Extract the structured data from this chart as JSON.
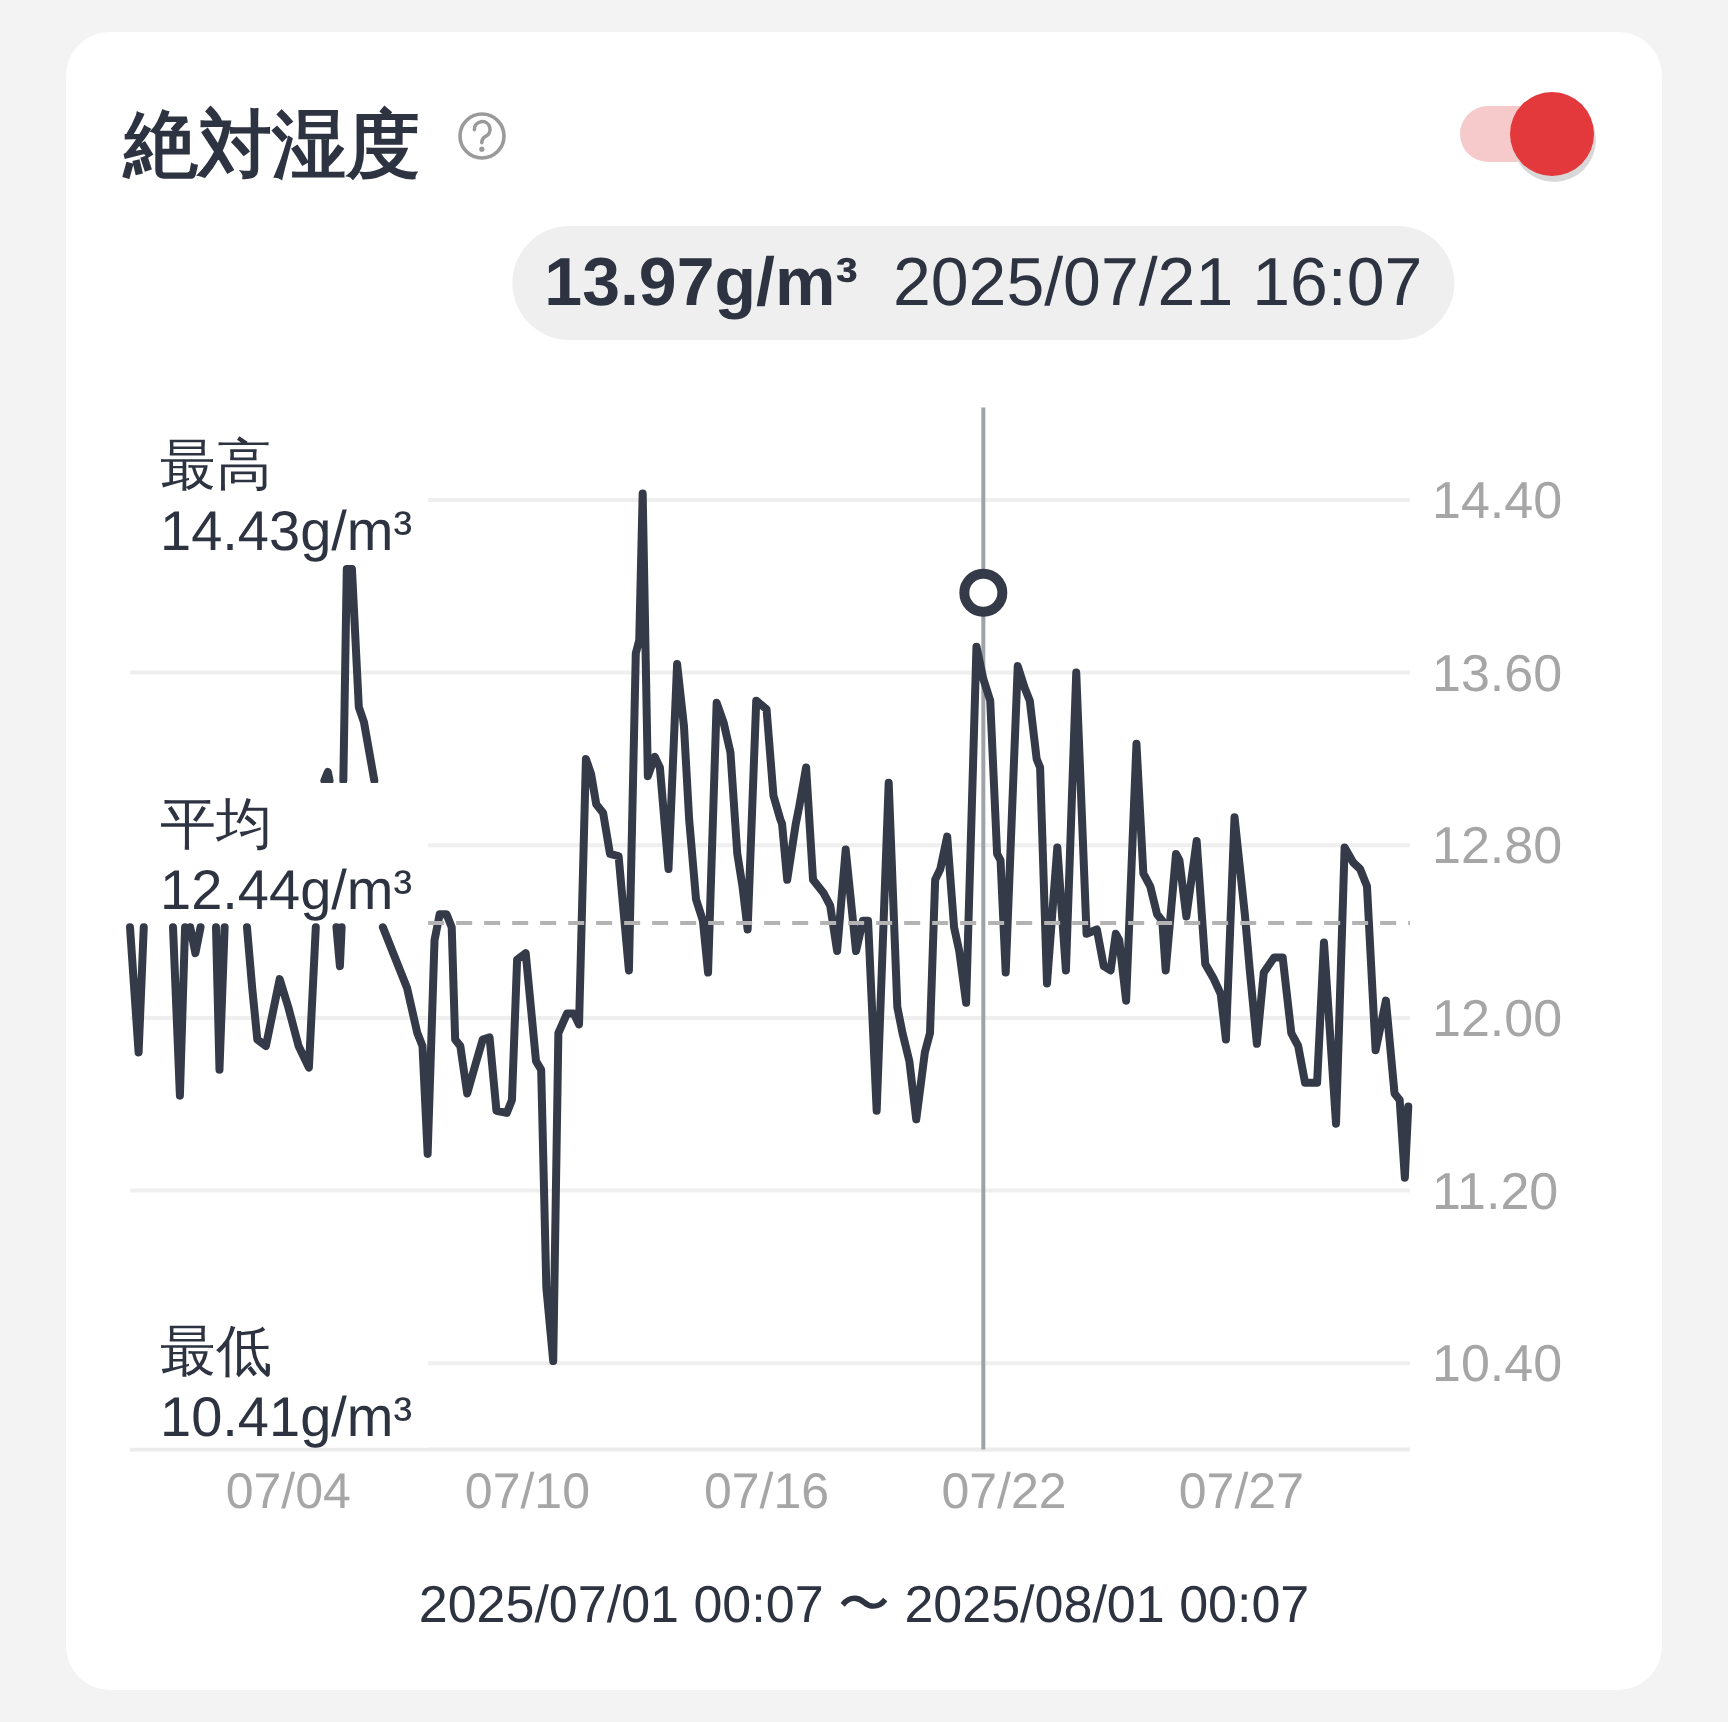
{
  "chart_data": {
    "type": "line",
    "title": "絶対湿度",
    "xlabel": "2025/07/01 00:07 〜 2025/08/01 00:07",
    "xlim": [
      "2025-07-01T00:07",
      "2025-08-01T00:07"
    ],
    "xticks": [
      {
        "value": "2025-07-04T20:07",
        "label": "07/04"
      },
      {
        "value": "2025-07-10T15:07",
        "label": "07/10"
      },
      {
        "value": "2025-07-16T10:07",
        "label": "07/16"
      },
      {
        "value": "2025-07-22T04:07",
        "label": "07/22"
      },
      {
        "value": "2025-07-27T22:07",
        "label": "07/27"
      }
    ],
    "ylim": [
      10.0,
      14.8
    ],
    "yticks": [
      {
        "value": 10.4,
        "label": "10.40"
      },
      {
        "value": 11.2,
        "label": "11.20"
      },
      {
        "value": 12.0,
        "label": "12.00"
      },
      {
        "value": 12.8,
        "label": "12.80"
      },
      {
        "value": 13.6,
        "label": "13.60"
      },
      {
        "value": 14.4,
        "label": "14.40"
      }
    ],
    "grid": "y",
    "series": [
      {
        "color": "#343a48",
        "x": [
          "2025-07-01T00:07",
          "2025-07-01T05:07",
          "2025-07-01T08:07",
          null,
          "2025-07-02T01:07",
          "2025-07-02T05:07",
          "2025-07-02T08:07",
          null,
          "2025-07-02T11:07",
          "2025-07-02T14:07",
          "2025-07-02T17:07",
          null,
          "2025-07-03T02:07",
          "2025-07-03T04:07",
          "2025-07-03T07:07",
          null,
          "2025-07-03T20:07",
          "2025-07-03T23:07",
          "2025-07-04T02:07",
          "2025-07-04T07:07",
          "2025-07-04T15:07",
          "2025-07-04T20:07",
          "2025-07-05T02:07",
          "2025-07-05T08:07",
          "2025-07-05T12:07",
          null,
          "2025-07-05T17:07",
          "2025-07-05T19:07",
          "2025-07-05T20:07",
          null,
          "2025-07-06T00:07",
          "2025-07-06T02:07",
          "2025-07-06T03:07",
          null,
          "2025-07-06T04:07",
          "2025-07-06T06:07",
          "2025-07-06T09:07",
          "2025-07-06T13:07",
          "2025-07-06T16:07",
          "2025-07-06T22:07",
          null,
          "2025-07-07T03:07",
          "2025-07-07T09:07",
          "2025-07-07T17:07",
          "2025-07-07T23:07",
          "2025-07-08T02:07",
          "2025-07-08T05:07",
          "2025-07-08T09:07",
          "2025-07-08T12:07",
          "2025-07-08T16:07",
          "2025-07-08T19:07",
          "2025-07-08T21:07",
          "2025-07-09T00:07",
          "2025-07-09T04:07",
          "2025-07-09T09:07",
          "2025-07-09T13:07",
          "2025-07-09T17:07",
          "2025-07-09T21:07",
          "2025-07-10T03:07",
          "2025-07-10T06:07",
          "2025-07-10T09:07",
          "2025-07-10T14:07",
          "2025-07-10T20:07",
          "2025-07-10T23:07",
          "2025-07-11T02:07",
          "2025-07-11T06:07",
          "2025-07-11T09:07",
          "2025-07-11T14:07",
          "2025-07-11T18:07",
          "2025-07-11T21:07",
          "2025-07-12T01:07",
          "2025-07-12T04:07",
          "2025-07-12T07:07",
          "2025-07-12T11:07",
          "2025-07-12T15:07",
          "2025-07-12T20:07",
          "2025-07-13T02:07",
          "2025-07-13T06:07",
          "2025-07-13T08:07",
          "2025-07-13T10:07",
          "2025-07-13T13:07",
          "2025-07-13T17:07",
          "2025-07-13T20:07",
          "2025-07-14T01:07",
          "2025-07-14T06:07",
          "2025-07-14T10:07",
          "2025-07-14T13:07",
          "2025-07-14T17:07",
          "2025-07-14T21:07",
          "2025-07-15T00:07",
          "2025-07-15T05:07",
          "2025-07-15T09:07",
          "2025-07-15T13:07",
          "2025-07-15T17:07",
          "2025-07-15T20:07",
          "2025-07-15T23:07",
          "2025-07-16T04:07",
          "2025-07-16T10:07",
          "2025-07-16T14:07",
          "2025-07-16T18:07",
          "2025-07-16T19:07",
          "2025-07-16T22:07",
          "2025-07-17T03:07",
          "2025-07-17T05:07",
          "2025-07-17T09:07",
          "2025-07-17T13:07",
          "2025-07-17T19:07",
          "2025-07-17T23:07",
          "2025-07-18T03:07",
          "2025-07-18T08:07",
          "2025-07-18T14:07",
          "2025-07-18T18:07",
          "2025-07-18T21:07",
          "2025-07-19T02:07",
          "2025-07-19T09:07",
          "2025-07-19T14:07",
          "2025-07-19T17:07",
          "2025-07-19T21:07",
          "2025-07-20T01:07",
          "2025-07-20T06:07",
          "2025-07-20T09:07",
          "2025-07-20T12:07",
          "2025-07-20T15:07",
          "2025-07-20T19:07",
          "2025-07-20T23:07",
          "2025-07-21T02:07",
          "2025-07-21T06:07",
          "2025-07-21T12:07",
          "2025-07-21T16:07",
          "2025-07-21T20:07",
          "2025-07-22T00:07",
          "2025-07-22T02:07",
          "2025-07-22T05:07",
          "2025-07-22T12:07",
          "2025-07-22T16:07",
          "2025-07-22T19:07",
          "2025-07-22T23:07",
          "2025-07-23T01:07",
          "2025-07-23T05:07",
          "2025-07-23T11:07",
          "2025-07-23T16:07",
          "2025-07-23T22:07",
          "2025-07-24T04:07",
          "2025-07-24T10:07",
          "2025-07-24T14:07",
          "2025-07-24T18:07",
          "2025-07-24T21:07",
          "2025-07-24T23:07",
          "2025-07-25T03:07",
          "2025-07-25T09:07",
          "2025-07-25T13:07",
          "2025-07-25T17:07",
          "2025-07-25T21:07",
          "2025-07-26T00:07",
          "2025-07-26T02:07",
          "2025-07-26T08:07",
          "2025-07-26T10:07",
          "2025-07-26T14:07",
          "2025-07-26T20:07",
          "2025-07-27T01:07",
          "2025-07-27T06:07",
          "2025-07-27T10:07",
          "2025-07-27T13:07",
          "2025-07-27T18:07",
          "2025-07-28T00:07",
          "2025-07-28T03:07",
          "2025-07-28T07:07",
          "2025-07-28T11:07",
          "2025-07-28T17:07",
          "2025-07-28T22:07",
          "2025-07-29T03:07",
          "2025-07-29T07:07",
          "2025-07-29T11:07",
          "2025-07-29T18:07",
          "2025-07-29T22:07",
          "2025-07-30T05:07",
          "2025-07-30T10:07",
          "2025-07-30T15:07",
          "2025-07-30T19:07",
          "2025-07-30T23:07",
          "2025-07-31T04:07",
          "2025-07-31T10:07",
          "2025-07-31T15:07",
          "2025-07-31T18:07",
          "2025-07-31T21:07",
          "2025-07-31T23:07"
        ],
        "values": [
          12.42,
          11.84,
          12.42,
          null,
          12.42,
          11.64,
          12.42,
          null,
          12.42,
          12.3,
          12.42,
          null,
          12.42,
          11.76,
          12.42,
          null,
          12.42,
          12.14,
          11.9,
          11.87,
          12.18,
          12.05,
          11.87,
          11.77,
          12.42,
          null,
          13.1,
          13.14,
          13.1,
          null,
          12.42,
          12.24,
          12.42,
          null,
          13.1,
          14.08,
          14.08,
          13.44,
          13.37,
          13.1,
          null,
          12.42,
          12.3,
          12.14,
          11.93,
          11.87,
          11.37,
          12.36,
          12.48,
          12.48,
          12.42,
          11.9,
          11.87,
          11.65,
          11.79,
          11.9,
          11.91,
          11.57,
          11.56,
          11.62,
          12.27,
          12.3,
          11.8,
          11.76,
          10.75,
          10.41,
          11.93,
          12.02,
          12.02,
          11.97,
          13.2,
          13.13,
          12.99,
          12.95,
          12.76,
          12.75,
          12.22,
          13.69,
          13.75,
          14.43,
          13.12,
          13.21,
          13.16,
          12.69,
          13.64,
          13.35,
          12.92,
          12.55,
          12.45,
          12.21,
          13.46,
          13.37,
          13.23,
          12.76,
          12.61,
          12.41,
          13.47,
          13.43,
          13.03,
          12.92,
          12.9,
          12.64,
          12.9,
          12.98,
          13.16,
          12.64,
          12.58,
          12.52,
          12.31,
          12.78,
          12.31,
          12.45,
          12.45,
          11.57,
          13.09,
          12.05,
          11.93,
          11.8,
          11.53,
          11.84,
          11.93,
          12.64,
          12.69,
          12.84,
          12.42,
          12.31,
          12.07,
          13.72,
          13.57,
          13.47,
          12.76,
          12.73,
          12.21,
          13.63,
          13.53,
          13.47,
          13.2,
          13.16,
          12.16,
          12.79,
          12.22,
          13.6,
          12.39,
          12.41,
          12.24,
          12.22,
          12.39,
          12.36,
          12.08,
          13.27,
          12.67,
          12.61,
          12.48,
          12.45,
          12.22,
          12.76,
          12.73,
          12.47,
          12.82,
          12.25,
          12.18,
          12.11,
          11.9,
          12.93,
          12.48,
          12.21,
          11.88,
          12.21,
          12.28,
          12.28,
          11.93,
          11.87,
          11.7,
          11.7,
          12.35,
          11.51,
          12.79,
          12.72,
          12.69,
          12.61,
          11.85,
          12.08,
          11.65,
          11.62,
          11.26,
          11.59
        ]
      },
      {
        "type": "scatter",
        "color": "#343a48",
        "marker": "circle",
        "x": [
          "2025-07-21T16:07"
        ],
        "values": [
          13.97
        ]
      }
    ],
    "ref_lines": [
      {
        "axis": "y",
        "value": 12.44,
        "label": "平均 12.44g/m³",
        "color": "#b3b3b3",
        "line_style": "dashed"
      },
      {
        "axis": "x",
        "value": "2025-07-21T16:07",
        "label": "**13.97g/m³** 2025/07/21 16:07",
        "color": "#9ea3a8"
      }
    ],
    "annotations": [
      "最高 14.43g/m³",
      "最低 10.41g/m³"
    ]
  }
}
